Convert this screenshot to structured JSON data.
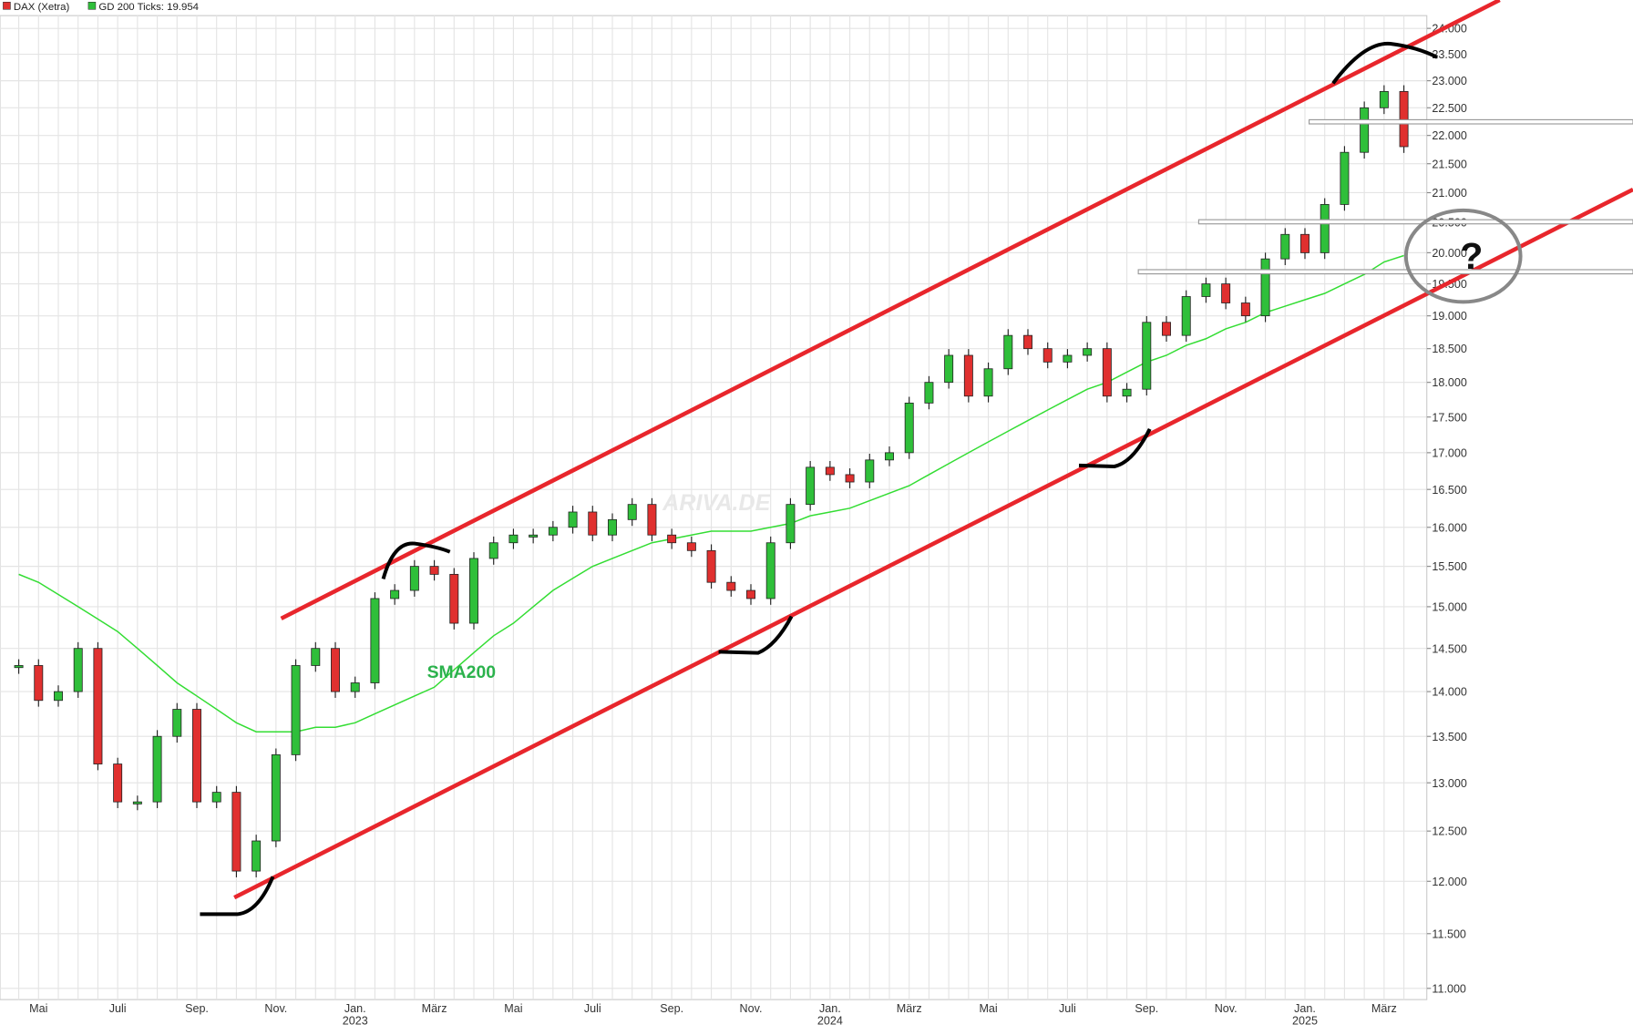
{
  "chart_data": {
    "type": "candlestick",
    "log_scale": true,
    "grid": true,
    "legend": "top-left",
    "watermark": "ARIVA.DE",
    "annotations": [
      {
        "text": "SMA200"
      },
      {
        "text": "?"
      }
    ],
    "categories": [
      null,
      "Mai",
      null,
      null,
      null,
      "Juli",
      null,
      null,
      null,
      "Sep.",
      null,
      null,
      null,
      "Nov.",
      null,
      null,
      null,
      "Jan. 2023",
      null,
      null,
      null,
      "März",
      null,
      null,
      null,
      "Mai",
      null,
      null,
      null,
      "Juli",
      null,
      null,
      null,
      "Sep.",
      null,
      null,
      null,
      "Nov.",
      null,
      null,
      null,
      "Jan. 2024",
      null,
      null,
      null,
      "März",
      null,
      null,
      null,
      "Mai",
      null,
      null,
      null,
      "Juli",
      null,
      null,
      null,
      "Sep.",
      null,
      null,
      null,
      "Nov.",
      null,
      null,
      null,
      "Jan. 2025",
      null,
      null,
      null,
      "März",
      null
    ],
    "series": [
      {
        "name": "DAX (Xetra)",
        "color": "#e0302f",
        "up_color": "#2fbf3a",
        "values": [
          14300,
          13900,
          14000,
          14500,
          13200,
          12800,
          12800,
          13500,
          13800,
          12800,
          12900,
          12100,
          12400,
          13300,
          14300,
          14500,
          14000,
          14100,
          15100,
          15200,
          15500,
          15400,
          14800,
          15600,
          15800,
          15900,
          15900,
          16000,
          16200,
          15900,
          16100,
          16300,
          15900,
          15800,
          15700,
          15300,
          15200,
          15100,
          15800,
          16300,
          16800,
          16700,
          16600,
          16900,
          17000,
          17700,
          18000,
          18400,
          17800,
          18200,
          18700,
          18500,
          18300,
          18400,
          18500,
          17800,
          17900,
          18900,
          18700,
          19300,
          19500,
          19200,
          19000,
          19900,
          20300,
          20000,
          20800,
          21700,
          22500,
          22800,
          21800
        ]
      },
      {
        "name": "GD 200 Ticks: 19.954",
        "color": "#33dd33",
        "values": [
          15400,
          15300,
          15150,
          15000,
          14850,
          14700,
          14500,
          14300,
          14100,
          13950,
          13800,
          13650,
          13550,
          13550,
          13550,
          13600,
          13600,
          13650,
          13750,
          13850,
          13950,
          14050,
          14250,
          14450,
          14650,
          14800,
          15000,
          15200,
          15350,
          15500,
          15600,
          15700,
          15800,
          15850,
          15900,
          15950,
          15950,
          15950,
          16000,
          16050,
          16150,
          16200,
          16250,
          16350,
          16450,
          16550,
          16700,
          16850,
          17000,
          17150,
          17300,
          17450,
          17600,
          17750,
          17900,
          18000,
          18150,
          18300,
          18400,
          18550,
          18650,
          18800,
          18900,
          19050,
          19150,
          19250,
          19350,
          19500,
          19650,
          19850,
          19954
        ]
      }
    ],
    "ylim": [
      10900,
      24250
    ],
    "yticks": [
      {
        "value": 11000,
        "label": "11.000"
      },
      {
        "value": 11500,
        "label": "11.500"
      },
      {
        "value": 12000,
        "label": "12.000"
      },
      {
        "value": 12500,
        "label": "12.500"
      },
      {
        "value": 13000,
        "label": "13.000"
      },
      {
        "value": 13500,
        "label": "13.500"
      },
      {
        "value": 14000,
        "label": "14.000"
      },
      {
        "value": 14500,
        "label": "14.500"
      },
      {
        "value": 15000,
        "label": "15.000"
      },
      {
        "value": 15500,
        "label": "15.500"
      },
      {
        "value": 16000,
        "label": "16.000"
      },
      {
        "value": 16500,
        "label": "16.500"
      },
      {
        "value": 17000,
        "label": "17.000"
      },
      {
        "value": 17500,
        "label": "17.500"
      },
      {
        "value": 18000,
        "label": "18.000"
      },
      {
        "value": 18500,
        "label": "18.500"
      },
      {
        "value": 19000,
        "label": "19.000"
      },
      {
        "value": 19500,
        "label": "19.500"
      },
      {
        "value": 20000,
        "label": "20.000"
      },
      {
        "value": 20500,
        "label": "20.500"
      },
      {
        "value": 21000,
        "label": "21.000"
      },
      {
        "value": 21500,
        "label": "21.500"
      },
      {
        "value": 22000,
        "label": "22.000"
      },
      {
        "value": 22500,
        "label": "22.500"
      },
      {
        "value": 23000,
        "label": "23.000"
      },
      {
        "value": 23500,
        "label": "23.500"
      },
      {
        "value": 24000,
        "label": "24.000"
      }
    ]
  }
}
